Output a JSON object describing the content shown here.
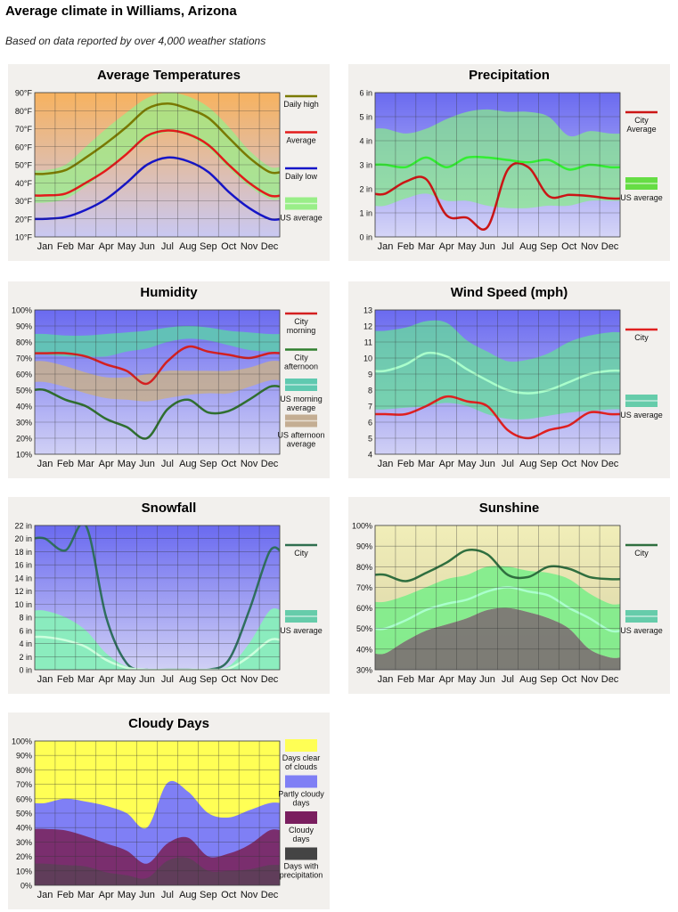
{
  "page": {
    "title": "Average climate in Williams, Arizona",
    "subtitle": "Based on data reported by over 4,000 weather stations"
  },
  "chart_data": [
    {
      "id": "temp",
      "type": "line",
      "title": "Average Temperatures",
      "categories": [
        "Jan",
        "Feb",
        "Mar",
        "Apr",
        "May",
        "Jun",
        "Jul",
        "Aug",
        "Sep",
        "Oct",
        "Nov",
        "Dec"
      ],
      "ylim": [
        10,
        90
      ],
      "yticks": [
        "10°F",
        "20°F",
        "30°F",
        "40°F",
        "50°F",
        "60°F",
        "70°F",
        "80°F",
        "90°F"
      ],
      "bg": {
        "top": "#f7b25f",
        "bottom": "#c9c8f2"
      },
      "bands": [
        {
          "name": "US average",
          "lower": [
            29,
            31,
            38,
            47,
            56,
            64,
            68,
            66,
            59,
            48,
            38,
            31
          ],
          "upper": [
            47,
            50,
            60,
            70,
            79,
            87,
            90,
            88,
            82,
            71,
            58,
            49
          ],
          "color": "#99ee88",
          "opacity": 0.75
        }
      ],
      "series": [
        {
          "name": "Daily high",
          "values": [
            45,
            47,
            54,
            62,
            71,
            81,
            84,
            81,
            76,
            65,
            54,
            46
          ],
          "color": "#7a7a00",
          "width": 2.5
        },
        {
          "name": "Average",
          "values": [
            33,
            34,
            40,
            47,
            56,
            66,
            69,
            67,
            61,
            50,
            40,
            33
          ],
          "color": "#e31b1b",
          "width": 2.5
        },
        {
          "name": "Daily low",
          "values": [
            20,
            21,
            25,
            31,
            40,
            50,
            54,
            52,
            46,
            35,
            26,
            20
          ],
          "color": "#1515c8",
          "width": 2.5
        }
      ],
      "legend": [
        {
          "label": "Daily high",
          "kind": "line",
          "color": "#7a7a00"
        },
        {
          "label": "Average",
          "kind": "line",
          "color": "#e31b1b"
        },
        {
          "label": "Daily low",
          "kind": "line",
          "color": "#1515c8"
        },
        {
          "label": "US average",
          "kind": "band",
          "color": "#99ee88"
        }
      ]
    },
    {
      "id": "precip",
      "type": "line",
      "title": "Precipitation",
      "categories": [
        "Jan",
        "Feb",
        "Mar",
        "Apr",
        "May",
        "Jun",
        "Jul",
        "Aug",
        "Sep",
        "Oct",
        "Nov",
        "Dec"
      ],
      "ylim": [
        0,
        6
      ],
      "yticks": [
        "0 in",
        "1 in",
        "2 in",
        "3 in",
        "4 in",
        "5 in",
        "6 in"
      ],
      "bg": {
        "top": "#6a6af0",
        "bottom": "#d5d5f7"
      },
      "bands": [
        {
          "name": "US average",
          "lower": [
            1.3,
            1.6,
            1.8,
            1.5,
            1.5,
            1.3,
            1.2,
            1.2,
            1.3,
            1.3,
            1.5,
            1.5
          ],
          "upper": [
            4.5,
            4.3,
            4.5,
            4.9,
            5.2,
            5.3,
            5.2,
            5.2,
            5.0,
            4.2,
            4.4,
            4.3
          ],
          "color": "#88ee88",
          "opacity": 0.7
        }
      ],
      "series": [
        {
          "name": "City Average",
          "values": [
            1.8,
            2.3,
            2.4,
            0.9,
            0.8,
            0.4,
            2.8,
            2.9,
            1.7,
            1.75,
            1.7,
            1.6
          ],
          "color": "#cc1515",
          "width": 2.5
        },
        {
          "name": "US average",
          "values": [
            3.0,
            2.9,
            3.3,
            2.9,
            3.3,
            3.3,
            3.2,
            3.1,
            3.2,
            2.8,
            3.0,
            2.9
          ],
          "color": "#33ee33",
          "width": 2.5
        }
      ],
      "legend": [
        {
          "label": "City\nAverage",
          "kind": "line",
          "color": "#cc1515"
        },
        {
          "label": "US average",
          "kind": "band",
          "color": "#66dd44"
        }
      ]
    },
    {
      "id": "humidity",
      "type": "line",
      "title": "Humidity",
      "categories": [
        "Jan",
        "Feb",
        "Mar",
        "Apr",
        "May",
        "Jun",
        "Jul",
        "Aug",
        "Sep",
        "Oct",
        "Nov",
        "Dec"
      ],
      "ylim": [
        10,
        100
      ],
      "yticks": [
        "10%",
        "20%",
        "30%",
        "40%",
        "50%",
        "60%",
        "70%",
        "80%",
        "90%",
        "100%"
      ],
      "bg": {
        "top": "#6a6af0",
        "bottom": "#d0d0f5"
      },
      "bands": [
        {
          "name": "US morning average",
          "lower": [
            72,
            71,
            71,
            71,
            74,
            76,
            80,
            82,
            81,
            78,
            75,
            74
          ],
          "upper": [
            85,
            84,
            84,
            85,
            86,
            87,
            89,
            90,
            89,
            87,
            86,
            85
          ],
          "color": "#5fc9b0",
          "opacity": 0.9
        },
        {
          "name": "US afternoon average",
          "lower": [
            55,
            52,
            48,
            45,
            44,
            43,
            45,
            47,
            48,
            48,
            52,
            56
          ],
          "upper": [
            68,
            65,
            61,
            58,
            58,
            60,
            62,
            62,
            62,
            62,
            64,
            68
          ],
          "color": "#c4ae93",
          "opacity": 0.9
        }
      ],
      "series": [
        {
          "name": "City morning",
          "values": [
            73,
            73,
            71,
            66,
            62,
            54,
            68,
            77,
            74,
            72,
            70,
            73
          ],
          "color": "#d42020",
          "width": 2.5
        },
        {
          "name": "City afternoon",
          "values": [
            50,
            44,
            40,
            32,
            27,
            20,
            38,
            44,
            36,
            37,
            44,
            52
          ],
          "color": "#2f6f2f",
          "width": 2.5
        }
      ],
      "legend": [
        {
          "label": "City\nmorning",
          "kind": "line",
          "color": "#d42020"
        },
        {
          "label": "City\nafternoon",
          "kind": "line",
          "color": "#2f7f2f"
        },
        {
          "label": "US morning\naverage",
          "kind": "band",
          "color": "#5fc9b0"
        },
        {
          "label": "US afternoon\naverage",
          "kind": "band",
          "color": "#c4ae93"
        }
      ]
    },
    {
      "id": "wind",
      "type": "line",
      "title": "Wind Speed (mph)",
      "categories": [
        "Jan",
        "Feb",
        "Mar",
        "Apr",
        "May",
        "Jun",
        "Jul",
        "Aug",
        "Sep",
        "Oct",
        "Nov",
        "Dec"
      ],
      "ylim": [
        4,
        13
      ],
      "yticks": [
        "4",
        "5",
        "6",
        "7",
        "8",
        "9",
        "10",
        "11",
        "12",
        "13"
      ],
      "bg": {
        "top": "#6a6af0",
        "bottom": "#d0d0f5"
      },
      "bands": [
        {
          "name": "US average",
          "lower": [
            6.8,
            6.9,
            7.0,
            7.2,
            7.0,
            6.5,
            6.2,
            6.2,
            6.4,
            6.6,
            6.7,
            6.8
          ],
          "upper": [
            11.7,
            11.9,
            12.3,
            12.2,
            11.1,
            10.4,
            9.8,
            9.9,
            10.3,
            11.0,
            11.4,
            11.6
          ],
          "color": "#66dd99",
          "opacity": 0.75
        }
      ],
      "series": [
        {
          "name": "City",
          "values": [
            6.5,
            6.5,
            7.0,
            7.6,
            7.3,
            7.0,
            5.5,
            5.0,
            5.5,
            5.8,
            6.6,
            6.5
          ],
          "color": "#e02020",
          "width": 2.5
        },
        {
          "name": "US average",
          "values": [
            9.2,
            9.6,
            10.3,
            10.1,
            9.3,
            8.6,
            8.0,
            7.8,
            8.0,
            8.5,
            9.0,
            9.2
          ],
          "color": "#aaffcc",
          "width": 2.5
        }
      ],
      "legend": [
        {
          "label": "City",
          "kind": "line",
          "color": "#e02020"
        },
        {
          "label": "US average",
          "kind": "band",
          "color": "#66ccaa"
        }
      ]
    },
    {
      "id": "snow",
      "type": "line",
      "title": "Snowfall",
      "categories": [
        "Jan",
        "Feb",
        "Mar",
        "Apr",
        "May",
        "Jun",
        "Jul",
        "Aug",
        "Sep",
        "Oct",
        "Nov",
        "Dec"
      ],
      "ylim": [
        0,
        22
      ],
      "yticks": [
        "0 in",
        "2 in",
        "4 in",
        "6 in",
        "8 in",
        "10 in",
        "12 in",
        "14 in",
        "16 in",
        "18 in",
        "20 in",
        "22 in"
      ],
      "bg": {
        "top": "#6a6af0",
        "bottom": "#d0d0f5"
      },
      "bands": [
        {
          "name": "US average",
          "lower": [
            0,
            0,
            0,
            0,
            0,
            0,
            0,
            0,
            0,
            0,
            0,
            0
          ],
          "upper": [
            9,
            8,
            6,
            2.5,
            0.5,
            0,
            0,
            0,
            0,
            0.5,
            4,
            9
          ],
          "color": "#88eebb",
          "opacity": 0.95
        }
      ],
      "series": [
        {
          "name": "City",
          "values": [
            20,
            18.2,
            22,
            8,
            1,
            0,
            0,
            0,
            0,
            1.5,
            9,
            18
          ],
          "color": "#2f6f5f",
          "width": 2.5
        },
        {
          "name": "US average",
          "values": [
            5,
            4.5,
            3.5,
            1.5,
            0.3,
            0,
            0,
            0,
            0,
            0.2,
            2,
            4.5
          ],
          "color": "#ccffdd",
          "width": 2.5
        }
      ],
      "legend": [
        {
          "label": "City",
          "kind": "line",
          "color": "#2f6f4f"
        },
        {
          "label": "US average",
          "kind": "band",
          "color": "#66ccaa"
        }
      ]
    },
    {
      "id": "sun",
      "type": "line",
      "title": "Sunshine",
      "categories": [
        "Jan",
        "Feb",
        "Mar",
        "Apr",
        "May",
        "Jun",
        "Jul",
        "Aug",
        "Sep",
        "Oct",
        "Nov",
        "Dec"
      ],
      "ylim": [
        30,
        100
      ],
      "yticks": [
        "30%",
        "40%",
        "50%",
        "60%",
        "70%",
        "80%",
        "90%",
        "100%"
      ],
      "bg": {
        "top": "#f1eeb8",
        "bottom": "#d8d2a8"
      },
      "bands": [
        {
          "name": "US shade",
          "lower": [
            30,
            30,
            30,
            30,
            30,
            30,
            30,
            30,
            30,
            30,
            30,
            30
          ],
          "upper": [
            38,
            44,
            49,
            52,
            55,
            59,
            60,
            58,
            55,
            50,
            40,
            36
          ],
          "color": "#6c6c6c",
          "opacity": 0.85
        },
        {
          "name": "US average",
          "lower": [
            38,
            44,
            49,
            52,
            55,
            59,
            60,
            58,
            55,
            50,
            40,
            36
          ],
          "upper": [
            63,
            66,
            70,
            74,
            76,
            80,
            80,
            78,
            77,
            74,
            67,
            62
          ],
          "color": "#77ee88",
          "opacity": 0.85
        }
      ],
      "series": [
        {
          "name": "City",
          "values": [
            76,
            73,
            77,
            82,
            88,
            86,
            76,
            75,
            80,
            79,
            75,
            74
          ],
          "color": "#2f6f3f",
          "width": 2.5
        },
        {
          "name": "US average",
          "values": [
            50,
            54,
            59,
            62,
            64,
            68,
            70,
            68,
            66,
            60,
            55,
            49
          ],
          "color": "#aaffcc",
          "width": 2.5
        }
      ],
      "legend": [
        {
          "label": "City",
          "kind": "line",
          "color": "#2f6f3f"
        },
        {
          "label": "US average",
          "kind": "band",
          "color": "#66ccaa"
        }
      ]
    },
    {
      "id": "cloudy",
      "type": "area",
      "title": "Cloudy Days",
      "categories": [
        "Jan",
        "Feb",
        "Mar",
        "Apr",
        "May",
        "Jun",
        "Jul",
        "Aug",
        "Sep",
        "Oct",
        "Nov",
        "Dec"
      ],
      "ylim": [
        0,
        100
      ],
      "yticks": [
        "0%",
        "10%",
        "20%",
        "30%",
        "40%",
        "50%",
        "60%",
        "70%",
        "80%",
        "90%",
        "100%"
      ],
      "bg": {
        "top": "#ffff55",
        "bottom": "#ffff55"
      },
      "bands": [
        {
          "name": "Partly cloudy days",
          "lower": [
            0,
            0,
            0,
            0,
            0,
            0,
            0,
            0,
            0,
            0,
            0,
            0
          ],
          "upper": [
            57,
            60,
            58,
            55,
            50,
            40,
            71,
            65,
            50,
            47,
            52,
            57
          ],
          "color": "#7f7ff5",
          "opacity": 1
        },
        {
          "name": "Cloudy days",
          "lower": [
            0,
            0,
            0,
            0,
            0,
            0,
            0,
            0,
            0,
            0,
            0,
            0
          ],
          "upper": [
            39,
            38,
            34,
            29,
            24,
            15,
            29,
            33,
            20,
            22,
            28,
            38
          ],
          "color": "#7a2e6e",
          "opacity": 1
        },
        {
          "name": "Days with precipitation",
          "lower": [
            0,
            0,
            0,
            0,
            0,
            0,
            0,
            0,
            0,
            0,
            0,
            0
          ],
          "upper": [
            15,
            14,
            13,
            9,
            7,
            5,
            17,
            19,
            10,
            10,
            11,
            14
          ],
          "color": "#4a4a4a",
          "opacity": 0.55
        }
      ],
      "series": [],
      "legend": [
        {
          "label": "Days clear\nof clouds",
          "kind": "block",
          "color": "#ffff55"
        },
        {
          "label": "Partly cloudy\ndays",
          "kind": "block",
          "color": "#7f7ff5"
        },
        {
          "label": "Cloudy\ndays",
          "kind": "block",
          "color": "#7a1f5f"
        },
        {
          "label": "Days with\nprecipitation",
          "kind": "block",
          "color": "#444444"
        }
      ]
    }
  ]
}
